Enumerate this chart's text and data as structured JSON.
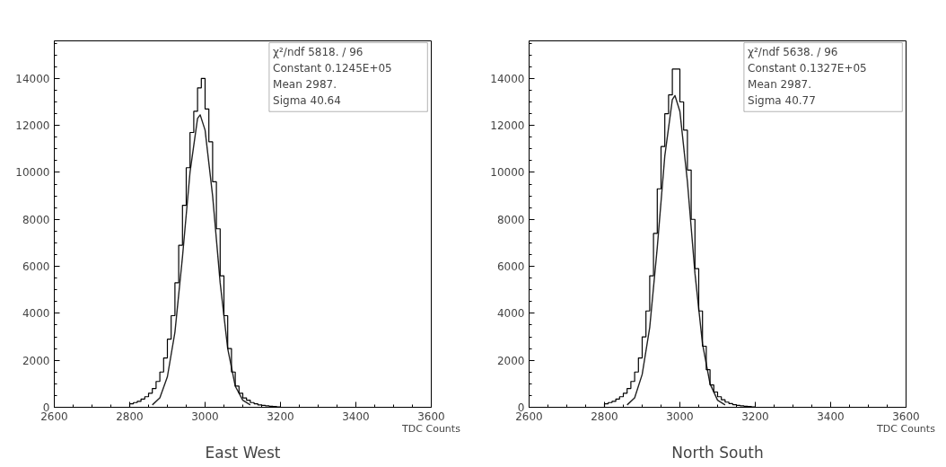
{
  "chart_data": [
    {
      "type": "histogram",
      "title": "East West",
      "xlabel": "TDC Counts",
      "color": "#000000",
      "bins": [
        2800,
        2810,
        2820,
        2830,
        2840,
        2850,
        2860,
        2870,
        2880,
        2890,
        2900,
        2910,
        2920,
        2930,
        2940,
        2950,
        2960,
        2970,
        2980,
        2990,
        3000,
        3010,
        3020,
        3030,
        3040,
        3050,
        3060,
        3070,
        3080,
        3090,
        3100,
        3110,
        3120,
        3130,
        3140,
        3150,
        3160,
        3170,
        3180,
        3190,
        3200
      ],
      "values": [
        150,
        200,
        250,
        350,
        450,
        600,
        800,
        1100,
        1500,
        2100,
        2900,
        3900,
        5300,
        6900,
        8600,
        10200,
        11700,
        12600,
        13600,
        14000,
        12700,
        11300,
        9600,
        7600,
        5600,
        3900,
        2500,
        1500,
        900,
        600,
        400,
        300,
        200,
        150,
        100,
        80,
        60,
        40,
        30,
        20
      ],
      "series": [
        {
          "type": "line",
          "color": "#222222",
          "x": [
            2860,
            2880,
            2900,
            2920,
            2940,
            2960,
            2980,
            2987,
            3000,
            3020,
            3040,
            3060,
            3080,
            3100,
            3120
          ],
          "values": [
            100,
            400,
            1300,
            3200,
            6400,
            10000,
            12300,
            12450,
            11800,
            9000,
            5300,
            2500,
            900,
            300,
            100
          ]
        }
      ],
      "xlim": [
        2600,
        3600
      ],
      "xticks": [
        2600,
        2800,
        3000,
        3200,
        3400,
        3600
      ],
      "ylim": [
        0,
        15600
      ],
      "yticks": [
        0,
        2000,
        4000,
        6000,
        8000,
        10000,
        12000,
        14000
      ],
      "grid": false,
      "annotations": [
        "χ²/ndf   5818.   /   96",
        "Constant    0.1245E+05",
        "Mean                    2987.",
        "Sigma                  40.64"
      ]
    },
    {
      "type": "histogram",
      "title": "North South",
      "xlabel": "TDC Counts",
      "color": "#000000",
      "bins": [
        2800,
        2810,
        2820,
        2830,
        2840,
        2850,
        2860,
        2870,
        2880,
        2890,
        2900,
        2910,
        2920,
        2930,
        2940,
        2950,
        2960,
        2970,
        2980,
        2990,
        3000,
        3010,
        3020,
        3030,
        3040,
        3050,
        3060,
        3070,
        3080,
        3090,
        3100,
        3110,
        3120,
        3130,
        3140,
        3150,
        3160,
        3170,
        3180,
        3190,
        3200
      ],
      "values": [
        150,
        200,
        250,
        350,
        450,
        600,
        800,
        1100,
        1500,
        2100,
        3000,
        4100,
        5600,
        7400,
        9300,
        11100,
        12500,
        13300,
        14400,
        14400,
        13000,
        11800,
        10100,
        8000,
        5900,
        4100,
        2600,
        1600,
        950,
        650,
        450,
        320,
        220,
        160,
        110,
        80,
        60,
        40,
        30,
        20
      ],
      "series": [
        {
          "type": "line",
          "color": "#222222",
          "x": [
            2860,
            2880,
            2900,
            2920,
            2940,
            2960,
            2980,
            2987,
            3000,
            3020,
            3040,
            3060,
            3080,
            3100,
            3120
          ],
          "values": [
            100,
            400,
            1400,
            3400,
            6800,
            10700,
            13100,
            13270,
            12600,
            9600,
            5700,
            2700,
            1000,
            300,
            100
          ]
        }
      ],
      "xlim": [
        2600,
        3600
      ],
      "xticks": [
        2600,
        2800,
        3000,
        3200,
        3400,
        3600
      ],
      "ylim": [
        0,
        15600
      ],
      "yticks": [
        0,
        2000,
        4000,
        6000,
        8000,
        10000,
        12000,
        14000
      ],
      "grid": false,
      "annotations": [
        "χ²/ndf   5638.   /   96",
        "Constant    0.1327E+05",
        "Mean                    2987.",
        "Sigma                  40.77"
      ]
    }
  ]
}
